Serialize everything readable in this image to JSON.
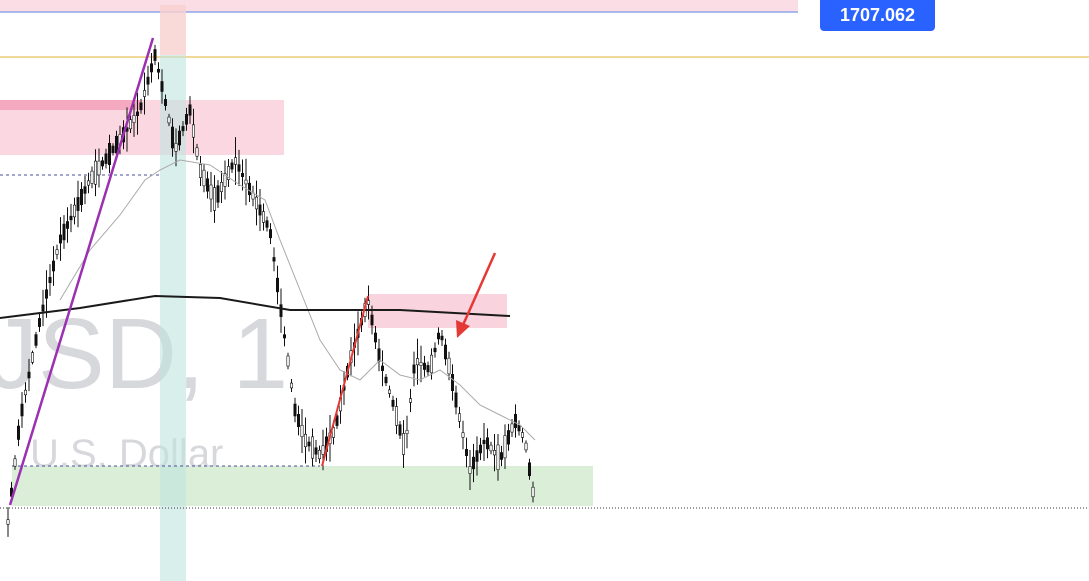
{
  "price_label": "1707.062",
  "watermark": {
    "symbol": "JSD, 1",
    "description": "U.S. Dollar"
  }
}
